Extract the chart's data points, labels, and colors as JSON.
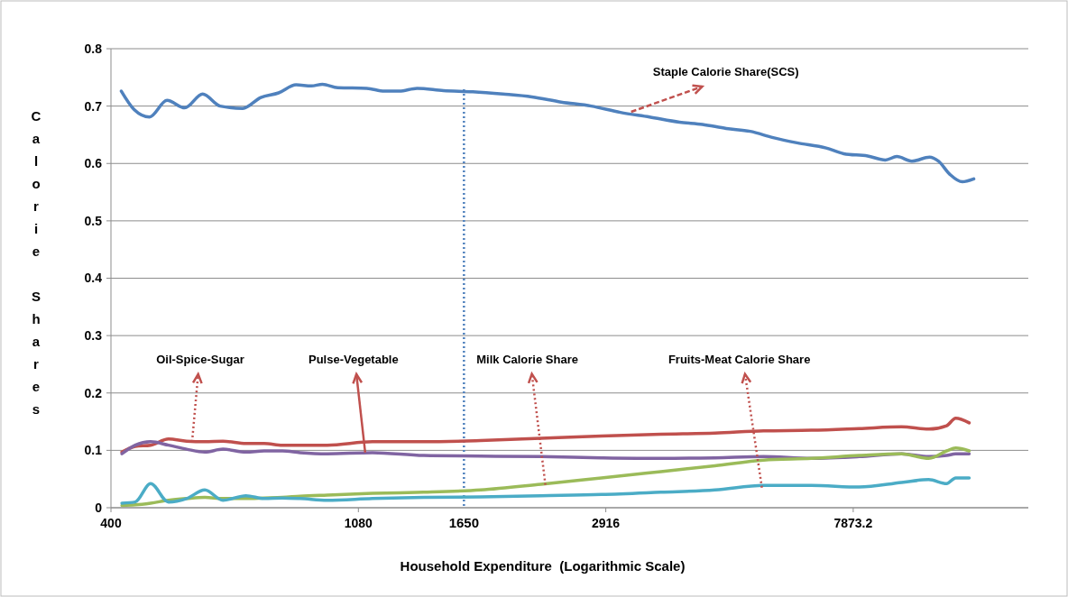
{
  "chart_data": {
    "type": "line",
    "xlabel": "Household Expenditure  (Logarithmic Scale)",
    "ylabel": "Calorie Shares",
    "log": "x",
    "xlim": [
      400,
      15900
    ],
    "xticks": [
      400,
      1080,
      2916,
      7873.2
    ],
    "ylim": [
      0,
      0.8
    ],
    "yticks": [
      0,
      0.1,
      0.2,
      0.3,
      0.4,
      0.5,
      0.6,
      0.7,
      0.8
    ],
    "grid": "y",
    "marker": "none",
    "line_style": "solid",
    "series": [
      {
        "color": "#4f81bd",
        "x": [
          417,
          439,
          467,
          501,
          538,
          578,
          620,
          679,
          730,
          784,
          841,
          894,
          935,
          994,
          1117,
          1199,
          1273,
          1367,
          1520,
          1709,
          1929,
          2168,
          2437,
          2750,
          3091,
          3475,
          3920,
          4299,
          4730,
          5206,
          5709,
          6282,
          7062,
          7581,
          8343,
          8958,
          9380,
          9962,
          10695,
          11083,
          11605,
          12197,
          12774
        ],
        "values": [
          0.726,
          0.694,
          0.681,
          0.71,
          0.697,
          0.721,
          0.7,
          0.696,
          0.715,
          0.723,
          0.737,
          0.735,
          0.738,
          0.732,
          0.731,
          0.726,
          0.726,
          0.731,
          0.727,
          0.725,
          0.721,
          0.716,
          0.707,
          0.7,
          0.689,
          0.681,
          0.672,
          0.668,
          0.661,
          0.656,
          0.645,
          0.636,
          0.627,
          0.617,
          0.613,
          0.606,
          0.612,
          0.604,
          0.611,
          0.604,
          0.581,
          0.568,
          0.573
        ]
      },
      {
        "color": "#c0504d",
        "x": [
          418,
          441,
          469,
          504,
          542,
          583,
          627,
          688,
          740,
          796,
          855,
          953,
          1143,
          1404,
          1764,
          2248,
          2865,
          3638,
          4520,
          5495,
          6656,
          8064,
          9560,
          10656,
          11456,
          11880,
          12540
        ],
        "values": [
          0.097,
          0.107,
          0.109,
          0.12,
          0.116,
          0.115,
          0.116,
          0.112,
          0.112,
          0.109,
          0.109,
          0.109,
          0.115,
          0.115,
          0.117,
          0.121,
          0.125,
          0.128,
          0.13,
          0.134,
          0.135,
          0.138,
          0.141,
          0.137,
          0.143,
          0.156,
          0.148
        ]
      },
      {
        "color": "#8064a2",
        "x": [
          418,
          441,
          469,
          504,
          542,
          583,
          627,
          688,
          740,
          796,
          855,
          953,
          1143,
          1404,
          1764,
          2248,
          2865,
          3638,
          4520,
          5495,
          6656,
          8064,
          9560,
          10656,
          11456,
          11880,
          12540
        ],
        "values": [
          0.094,
          0.109,
          0.115,
          0.109,
          0.102,
          0.097,
          0.102,
          0.097,
          0.099,
          0.099,
          0.096,
          0.094,
          0.096,
          0.091,
          0.09,
          0.089,
          0.087,
          0.086,
          0.087,
          0.089,
          0.086,
          0.089,
          0.094,
          0.089,
          0.091,
          0.094,
          0.094
        ]
      },
      {
        "color": "#9bbb59",
        "x": [
          418,
          441,
          469,
          504,
          542,
          583,
          627,
          688,
          740,
          796,
          855,
          953,
          1143,
          1404,
          1764,
          2248,
          2865,
          3638,
          4520,
          5495,
          6656,
          8064,
          9560,
          10656,
          11456,
          11880,
          12540
        ],
        "values": [
          0.004,
          0.005,
          0.008,
          0.013,
          0.016,
          0.018,
          0.016,
          0.016,
          0.017,
          0.018,
          0.02,
          0.022,
          0.025,
          0.027,
          0.031,
          0.041,
          0.052,
          0.063,
          0.073,
          0.083,
          0.086,
          0.091,
          0.094,
          0.086,
          0.099,
          0.104,
          0.099
        ]
      },
      {
        "color": "#4bacc6",
        "x": [
          418,
          441,
          469,
          504,
          542,
          583,
          627,
          688,
          740,
          796,
          855,
          953,
          1143,
          1404,
          1764,
          2248,
          2865,
          3638,
          4520,
          5495,
          6656,
          8064,
          9560,
          10656,
          11456,
          11880,
          12540
        ],
        "values": [
          0.008,
          0.01,
          0.042,
          0.01,
          0.016,
          0.031,
          0.013,
          0.021,
          0.016,
          0.017,
          0.016,
          0.013,
          0.016,
          0.018,
          0.019,
          0.021,
          0.023,
          0.027,
          0.031,
          0.039,
          0.039,
          0.036,
          0.044,
          0.049,
          0.042,
          0.052,
          0.052
        ]
      }
    ],
    "ref_lines": [
      {
        "axis": "x",
        "value": 1650,
        "label": "1650",
        "color": "#4f81bd",
        "line_style": "dotted"
      }
    ],
    "annotations": [
      {
        "text": "Staple Calorie Share(SCS)",
        "x": 3228,
        "y": 0.69
      },
      {
        "text": "Oil-Spice-Sugar",
        "x": 554,
        "y": 0.115
      },
      {
        "text": "Pulse-Vegetable",
        "x": 1110,
        "y": 0.096
      },
      {
        "text": "Milk Calorie Share",
        "x": 2288,
        "y": 0.04
      },
      {
        "text": "Fruits-Meat Calorie Share",
        "x": 5457,
        "y": 0.035
      }
    ]
  }
}
